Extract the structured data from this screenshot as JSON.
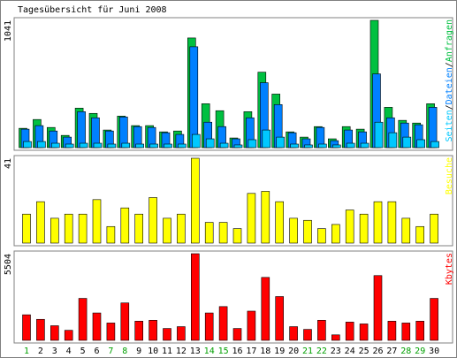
{
  "chart_data": [
    {
      "type": "bar",
      "title": "Tagesübersicht für Juni 2008",
      "legend_separator": "/",
      "ylim": [
        0,
        1041
      ],
      "yticks": [
        1041
      ],
      "series": [
        {
          "name": "Seiten",
          "color": "#00c8ff",
          "values": [
            50,
            50,
            36,
            29,
            36,
            36,
            29,
            36,
            29,
            29,
            29,
            29,
            108,
            72,
            36,
            22,
            65,
            144,
            86,
            29,
            22,
            29,
            22,
            36,
            36,
            208,
            122,
            86,
            65,
            50
          ]
        },
        {
          "name": "Dateien",
          "color": "#0080ff",
          "values": [
            151,
            180,
            136,
            86,
            294,
            244,
            136,
            251,
            172,
            165,
            122,
            108,
            825,
            208,
            172,
            72,
            244,
            531,
            352,
            122,
            72,
            165,
            57,
            144,
            129,
            603,
            244,
            201,
            187,
            330
          ]
        },
        {
          "name": "Anfragen",
          "color": "#00c040",
          "values": [
            158,
            230,
            165,
            100,
            323,
            280,
            144,
            258,
            180,
            180,
            129,
            136,
            897,
            359,
            302,
            79,
            294,
            617,
            438,
            129,
            86,
            172,
            72,
            172,
            151,
            1041,
            330,
            223,
            201,
            359
          ]
        }
      ]
    },
    {
      "type": "bar",
      "ylim": [
        0,
        41
      ],
      "yticks": [
        41
      ],
      "series": [
        {
          "name": "Besuche",
          "color": "#ffff00",
          "values": [
            14,
            20,
            12,
            14,
            14,
            21,
            8,
            17,
            14,
            22,
            12,
            14,
            41,
            10,
            10,
            7,
            24,
            25,
            20,
            12,
            11,
            7,
            9,
            16,
            14,
            20,
            20,
            12,
            8,
            14
          ]
        }
      ]
    },
    {
      "type": "bar",
      "ylim": [
        0,
        5504
      ],
      "yticks": [
        5504
      ],
      "categories": [
        "1",
        "2",
        "3",
        "4",
        "5",
        "6",
        "7",
        "8",
        "9",
        "10",
        "11",
        "12",
        "13",
        "14",
        "15",
        "16",
        "17",
        "18",
        "19",
        "20",
        "21",
        "22",
        "23",
        "24",
        "25",
        "26",
        "27",
        "28",
        "29",
        "30"
      ],
      "category_colors": [
        "#00a000",
        "#000000",
        "#000000",
        "#000000",
        "#000000",
        "#000000",
        "#00a000",
        "#00a000",
        "#000000",
        "#000000",
        "#000000",
        "#000000",
        "#000000",
        "#00a000",
        "#00a000",
        "#000000",
        "#000000",
        "#000000",
        "#000000",
        "#000000",
        "#00a000",
        "#00a000",
        "#000000",
        "#000000",
        "#000000",
        "#000000",
        "#000000",
        "#00a000",
        "#00a000",
        "#000000"
      ],
      "series": [
        {
          "name": "Kbytes",
          "color": "#ff0000",
          "values": [
            1622,
            1333,
            927,
            637,
            2665,
            1738,
            1101,
            2375,
            1217,
            1275,
            753,
            869,
            5504,
            1738,
            2144,
            753,
            1854,
            3998,
            2781,
            869,
            695,
            1275,
            348,
            1159,
            1043,
            4114,
            1217,
            1101,
            1217,
            2665
          ]
        }
      ]
    }
  ]
}
